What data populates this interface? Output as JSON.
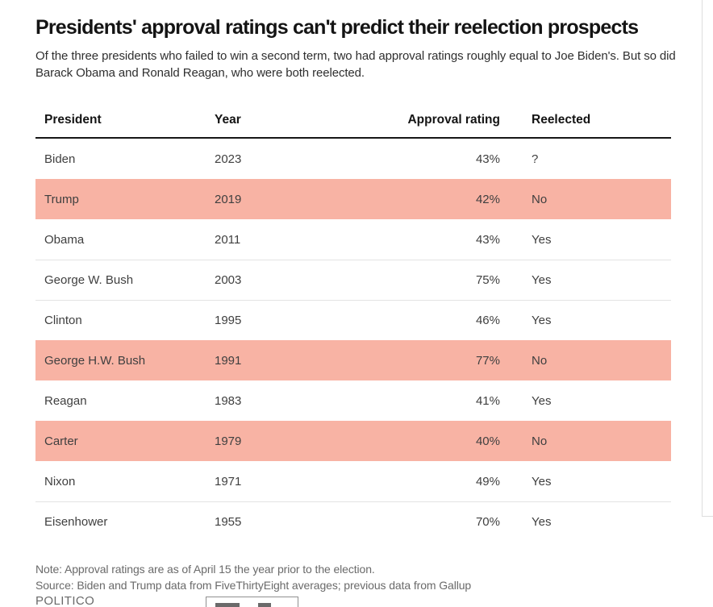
{
  "header": {
    "title": "Presidents' approval ratings can't predict their reelection prospects",
    "subtitle": "Of the three presidents who failed to win a second term, two had approval ratings roughly equal to Joe Biden's. But so did Barack Obama and Ronald Reagan, who were both reelected."
  },
  "table": {
    "columns": [
      "President",
      "Year",
      "Approval rating",
      "Reelected"
    ],
    "rows": [
      {
        "president": "Biden",
        "year": "2023",
        "approval": "43%",
        "reelected": "?",
        "highlighted": false
      },
      {
        "president": "Trump",
        "year": "2019",
        "approval": "42%",
        "reelected": "No",
        "highlighted": true
      },
      {
        "president": "Obama",
        "year": "2011",
        "approval": "43%",
        "reelected": "Yes",
        "highlighted": false
      },
      {
        "president": "George W. Bush",
        "year": "2003",
        "approval": "75%",
        "reelected": "Yes",
        "highlighted": false
      },
      {
        "president": "Clinton",
        "year": "1995",
        "approval": "46%",
        "reelected": "Yes",
        "highlighted": false
      },
      {
        "president": "George H.W. Bush",
        "year": "1991",
        "approval": "77%",
        "reelected": "No",
        "highlighted": true
      },
      {
        "president": "Reagan",
        "year": "1983",
        "approval": "41%",
        "reelected": "Yes",
        "highlighted": false
      },
      {
        "president": "Carter",
        "year": "1979",
        "approval": "40%",
        "reelected": "No",
        "highlighted": true
      },
      {
        "president": "Nixon",
        "year": "1971",
        "approval": "49%",
        "reelected": "Yes",
        "highlighted": false
      },
      {
        "president": "Eisenhower",
        "year": "1955",
        "approval": "70%",
        "reelected": "Yes",
        "highlighted": false
      }
    ]
  },
  "footer": {
    "note": "Note: Approval ratings are as of April 15 the year prior to the election.",
    "source": "Source: Biden and Trump data from FiveThirtyEight averages; previous data from Gallup",
    "brand": "POLITICO"
  },
  "colors": {
    "highlight_row": "#f8b3a4",
    "header_rule": "#161616",
    "row_divider": "#e3e3e3",
    "body_text": "#3f3f3f",
    "muted_text": "#6a6a6a",
    "panel_border": "#dddddd"
  },
  "chart_data": {
    "type": "table",
    "title": "Presidents' approval ratings can't predict their reelection prospects",
    "subtitle": "Of the three presidents who failed to win a second term, two had approval ratings roughly equal to Joe Biden's. But so did Barack Obama and Ronald Reagan, who were both reelected.",
    "columns": [
      "President",
      "Year",
      "Approval rating",
      "Reelected"
    ],
    "rows": [
      [
        "Biden",
        2023,
        "43%",
        "?"
      ],
      [
        "Trump",
        2019,
        "42%",
        "No"
      ],
      [
        "Obama",
        2011,
        "43%",
        "Yes"
      ],
      [
        "George W. Bush",
        2003,
        "75%",
        "Yes"
      ],
      [
        "Clinton",
        1995,
        "46%",
        "Yes"
      ],
      [
        "George H.W. Bush",
        1991,
        "77%",
        "No"
      ],
      [
        "Reagan",
        1983,
        "41%",
        "Yes"
      ],
      [
        "Carter",
        1979,
        "40%",
        "No"
      ],
      [
        "Nixon",
        1971,
        "49%",
        "Yes"
      ],
      [
        "Eisenhower",
        1955,
        "70%",
        "Yes"
      ]
    ],
    "highlighted_rows": [
      "Trump",
      "George H.W. Bush",
      "Carter"
    ],
    "note": "Note: Approval ratings are as of April 15 the year prior to the election.",
    "source": "Source: Biden and Trump data from FiveThirtyEight averages; previous data from Gallup",
    "brand": "POLITICO"
  }
}
